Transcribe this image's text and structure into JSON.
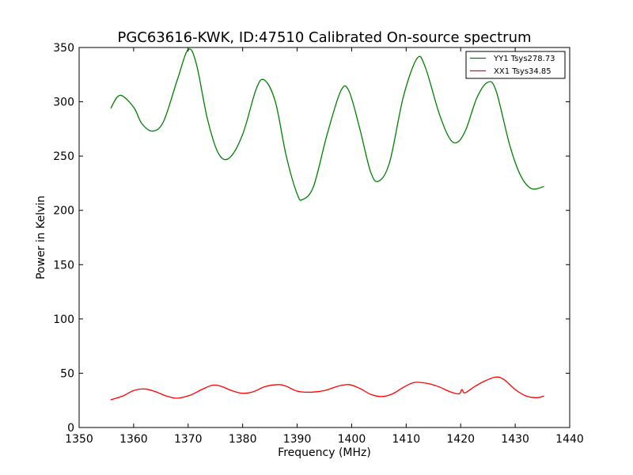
{
  "chart_data": {
    "type": "line",
    "title": "PGC63616-KWK, ID:47510 Calibrated On-source spectrum",
    "xlabel": "Frequency (MHz)",
    "ylabel": "Power in Kelvin",
    "xlim": [
      1350,
      1440
    ],
    "ylim": [
      0,
      350
    ],
    "xticks": [
      1350,
      1360,
      1370,
      1380,
      1390,
      1400,
      1410,
      1420,
      1430,
      1440
    ],
    "yticks": [
      0,
      50,
      100,
      150,
      200,
      250,
      300,
      350
    ],
    "grid": false,
    "legend_position": "top-right",
    "series": [
      {
        "name": "YY1 Tsys278.73",
        "color": "#008000",
        "x": [
          1355.8,
          1357.5,
          1360,
          1361.5,
          1363.5,
          1365.5,
          1368,
          1370,
          1371.5,
          1373.5,
          1375.5,
          1377.5,
          1380,
          1382.5,
          1384,
          1386,
          1388,
          1390,
          1391,
          1393,
          1395.5,
          1398,
          1399.5,
          1401.5,
          1403.5,
          1405,
          1407,
          1409.5,
          1412,
          1413.5,
          1416,
          1418,
          1419.5,
          1421,
          1423,
          1425,
          1426.5,
          1429,
          1431,
          1433,
          1435.3
        ],
        "y": [
          294,
          306,
          295,
          280,
          273,
          282,
          320,
          348,
          335,
          285,
          253,
          248,
          270,
          312,
          320,
          300,
          250,
          215,
          210,
          222,
          270,
          310,
          310,
          275,
          235,
          227,
          245,
          305,
          340,
          332,
          290,
          266,
          263,
          275,
          304,
          318,
          310,
          260,
          232,
          220,
          222
        ]
      },
      {
        "name": "XX1 Tsys34.85",
        "color": "#ff0000",
        "x": [
          1355.8,
          1358,
          1360,
          1362,
          1364,
          1366,
          1368,
          1370.5,
          1372.5,
          1374.5,
          1376,
          1378,
          1380,
          1382,
          1384,
          1386.5,
          1388,
          1390,
          1392.5,
          1395,
          1397.5,
          1399.5,
          1401.5,
          1403.5,
          1405.5,
          1407.5,
          1409.5,
          1411.5,
          1414,
          1416,
          1418,
          1419.7,
          1420.2,
          1420.6,
          1421.2,
          1422.5,
          1424.5,
          1426.5,
          1428,
          1430,
          1432,
          1434,
          1435.3
        ],
        "y": [
          25.5,
          29,
          34,
          35.5,
          33,
          29,
          27,
          30,
          35,
          39,
          38,
          34,
          31.5,
          33,
          37.5,
          39.5,
          38,
          33.5,
          32.5,
          34,
          38,
          39.5,
          36,
          30.5,
          28.5,
          31,
          37,
          41.5,
          40.5,
          37.5,
          33,
          31,
          35,
          32,
          33,
          37.5,
          43,
          46.5,
          44,
          35,
          29,
          27.5,
          29
        ]
      }
    ]
  }
}
